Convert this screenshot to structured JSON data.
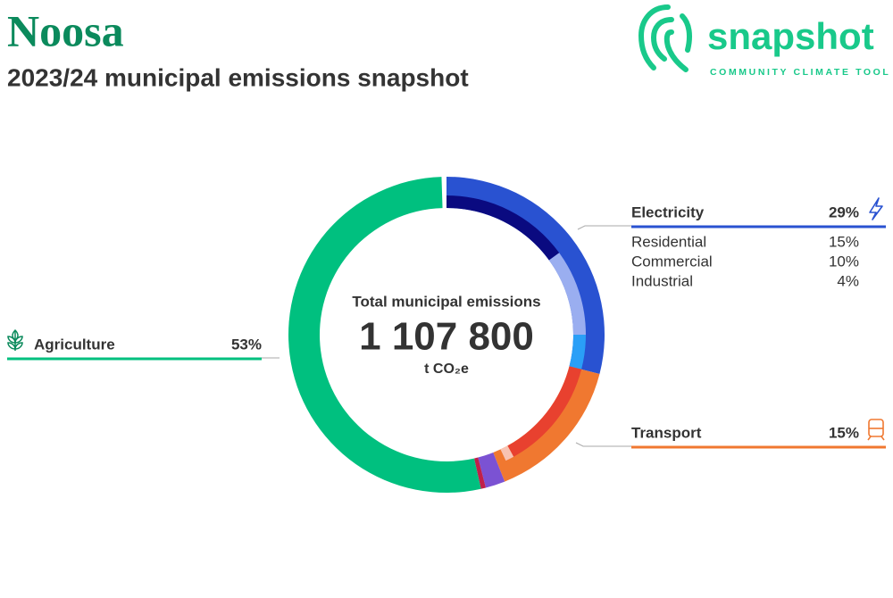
{
  "header": {
    "title": "Noosa",
    "subtitle": "2023/24 municipal emissions snapshot",
    "logo": "snapshot",
    "logo_tagline": "COMMUNITY CLIMATE TOOL"
  },
  "chart_data": {
    "type": "donut",
    "center_title": "Total municipal emissions",
    "total": "1 107 800",
    "unit": "t CO₂e",
    "series": [
      {
        "name": "Electricity",
        "color": "#2952d1",
        "value": 29,
        "value_label": "29%",
        "sub": [
          {
            "name": "Residential",
            "color": "#0a0a80",
            "value": 15,
            "value_label": "15%"
          },
          {
            "name": "Commercial",
            "color": "#9aaef0",
            "value": 10,
            "value_label": "10%"
          },
          {
            "name": "Industrial",
            "color": "#2a9ff7",
            "value": 4,
            "value_label": "4%"
          }
        ]
      },
      {
        "name": "Transport",
        "color": "#f07830",
        "value": 15,
        "value_label": "15%",
        "sub": [
          {
            "color": "#e8412f",
            "value": 13
          },
          {
            "color": "#f8c3b2",
            "value": 1
          }
        ]
      },
      {
        "color": "#7b52d3",
        "value": 2
      },
      {
        "color": "#c0204a",
        "value": 0.5
      },
      {
        "name": "Agriculture",
        "color": "#00c07f",
        "value": 53,
        "value_label": "53%"
      }
    ]
  }
}
